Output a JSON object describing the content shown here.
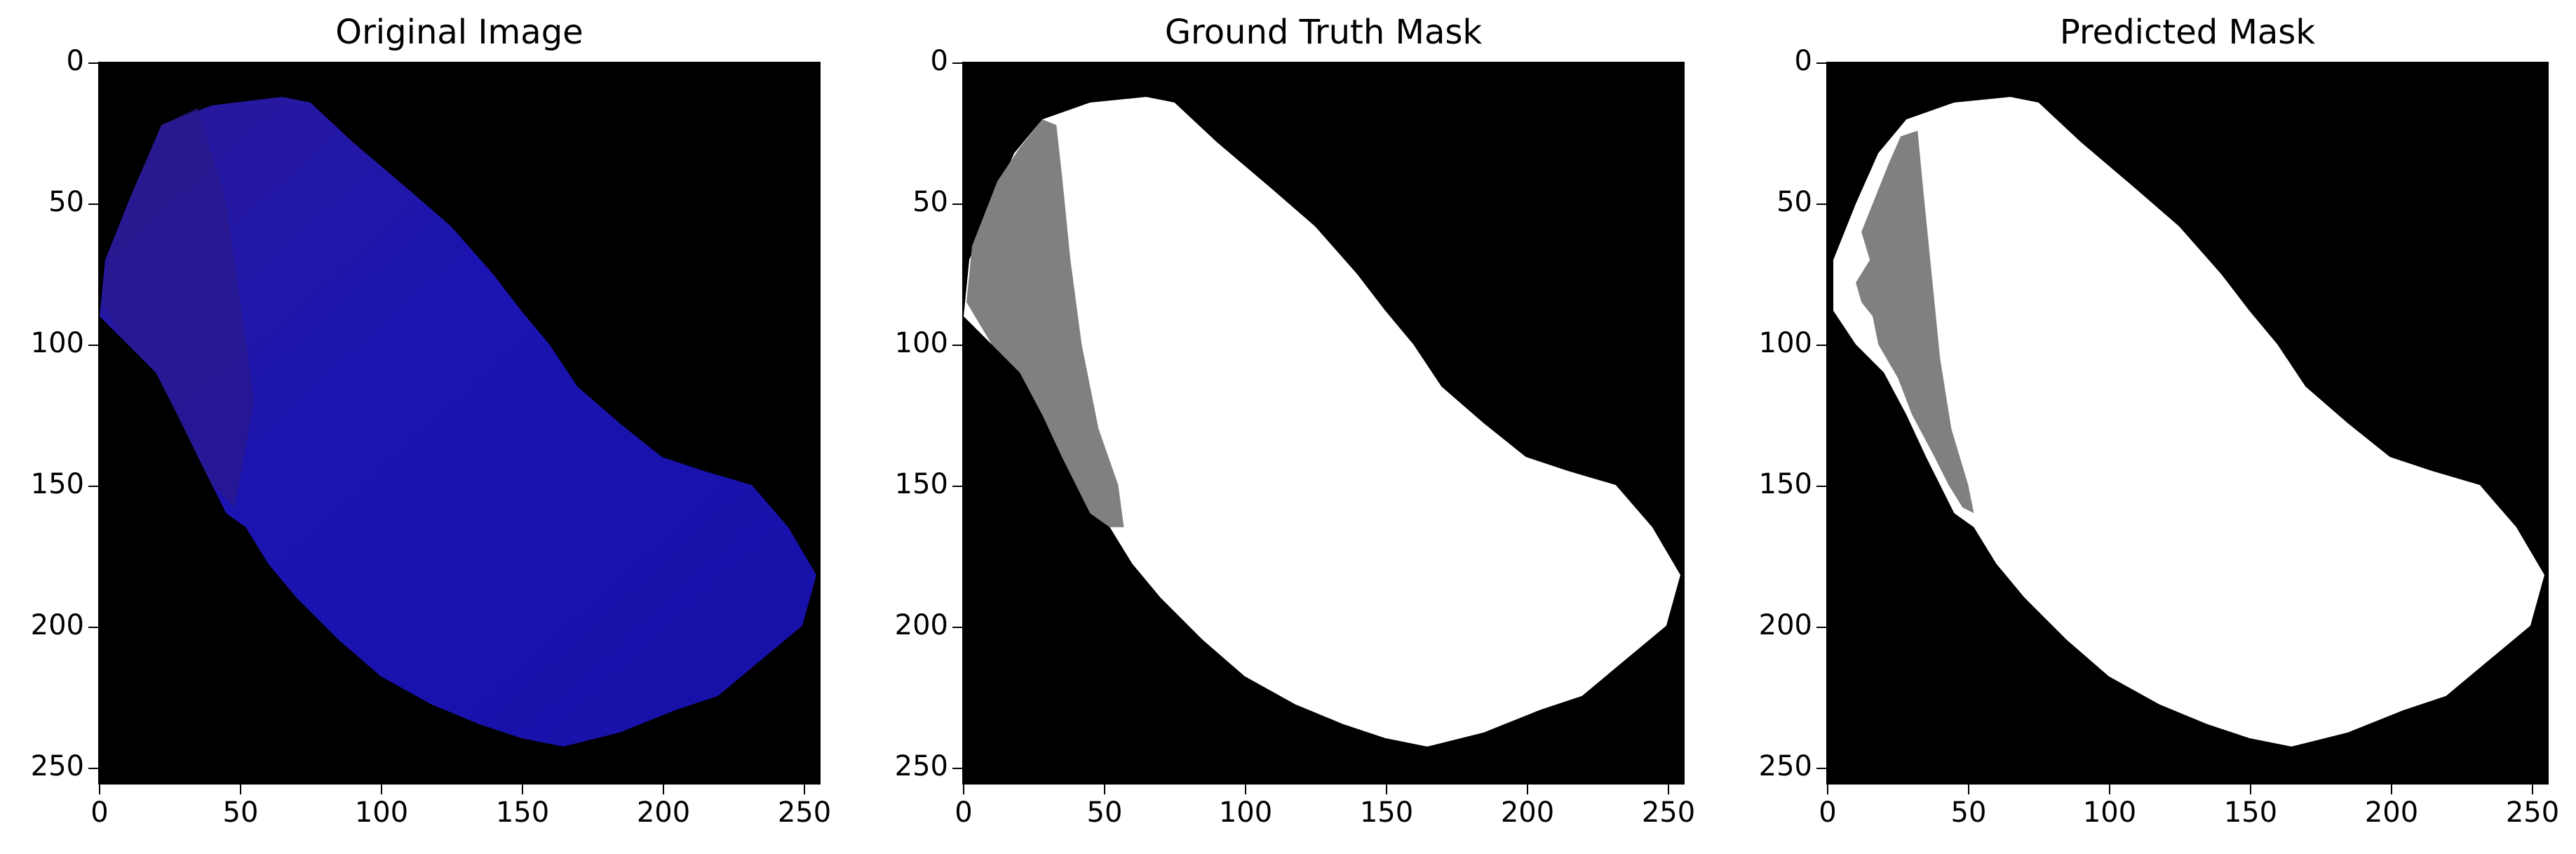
{
  "panels": [
    {
      "title": "Original Image"
    },
    {
      "title": "Ground Truth Mask"
    },
    {
      "title": "Predicted Mask"
    }
  ],
  "x_ticks": [
    "0",
    "50",
    "100",
    "150",
    "200",
    "250"
  ],
  "y_ticks": [
    "0",
    "50",
    "100",
    "150",
    "200",
    "250"
  ],
  "colors": {
    "background": "#000000",
    "tissue_blue": "#1a12a8",
    "mask_white": "#ffffff",
    "mask_gray": "#808080"
  }
}
